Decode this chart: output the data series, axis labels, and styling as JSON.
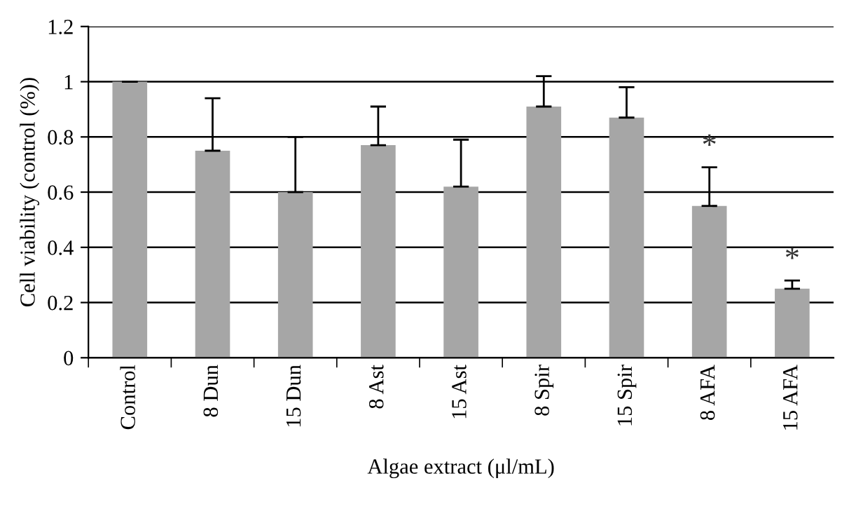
{
  "chart_data": {
    "type": "bar",
    "xlabel": "Algae extract (μl/mL)",
    "ylabel": "Cell viability (control (%))",
    "categories": [
      "Control",
      "8 Dun",
      "15 Dun",
      "8 Ast",
      "15 Ast",
      "8 Spir",
      "15 Spir",
      "8 AFA",
      "15 AFA"
    ],
    "values": [
      1.0,
      0.75,
      0.6,
      0.77,
      0.62,
      0.91,
      0.87,
      0.55,
      0.25
    ],
    "errors": [
      [
        1.0,
        1.0
      ],
      [
        0.75,
        0.94
      ],
      [
        0.6,
        0.8
      ],
      [
        0.77,
        0.91
      ],
      [
        0.62,
        0.79
      ],
      [
        0.91,
        1.02
      ],
      [
        0.87,
        0.98
      ],
      [
        0.55,
        0.69
      ],
      [
        0.25,
        0.28
      ]
    ],
    "color": "#a6a6a6",
    "ylim": [
      0,
      1.2
    ],
    "yticks": [
      {
        "value": 0,
        "label": "0"
      },
      {
        "value": 0.2,
        "label": "0.2"
      },
      {
        "value": 0.4,
        "label": "0.4"
      },
      {
        "value": 0.6,
        "label": "0.6"
      },
      {
        "value": 0.8,
        "label": "0.8"
      },
      {
        "value": 1,
        "label": "1"
      },
      {
        "value": 1.2,
        "label": "1.2"
      }
    ],
    "grid": "y",
    "annotations": [
      "*",
      "*"
    ]
  }
}
